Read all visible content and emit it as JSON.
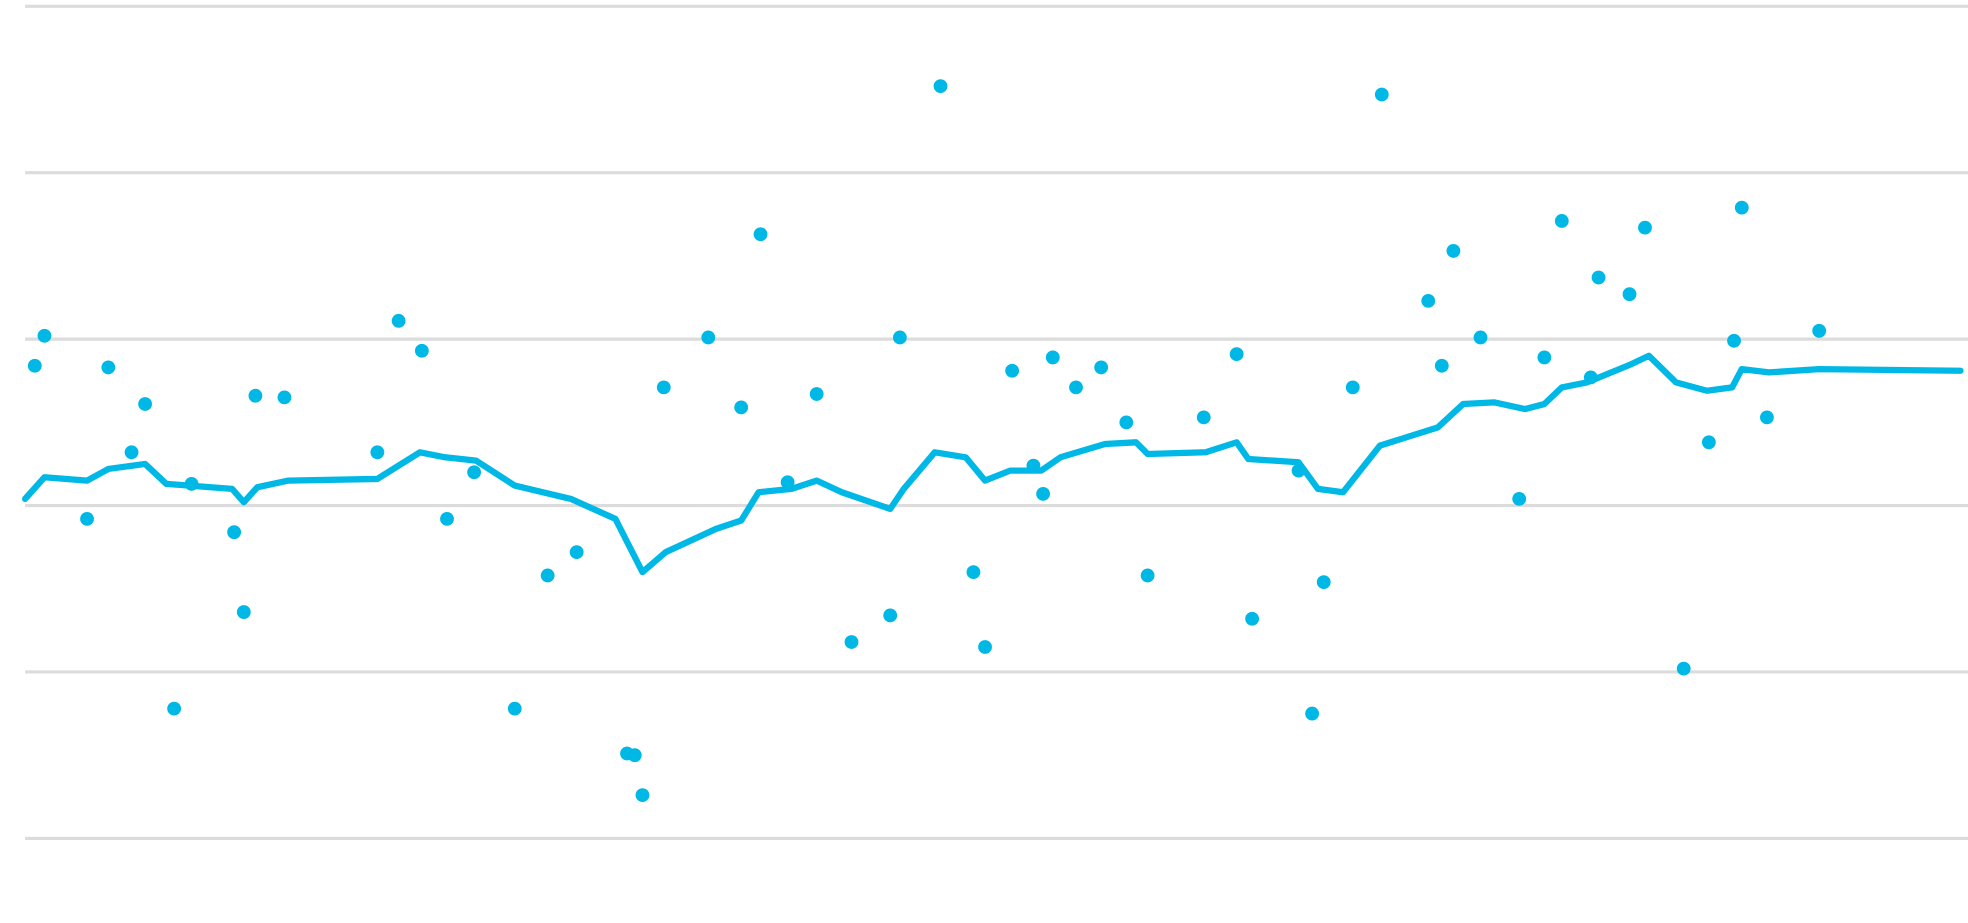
{
  "chart_data": {
    "type": "scatter",
    "color": "#00b8e6",
    "grid": true,
    "xlim": [
      0,
      100
    ],
    "ylim": [
      0,
      5
    ],
    "yticks": [
      0,
      1,
      2,
      3,
      4,
      5
    ],
    "points": {
      "x": [
        0.5,
        1.0,
        3.2,
        4.3,
        5.5,
        6.2,
        7.7,
        8.6,
        10.8,
        11.3,
        11.9,
        13.4,
        18.2,
        19.3,
        20.5,
        21.8,
        23.2,
        25.3,
        27.0,
        28.5,
        31.1,
        31.5,
        31.9,
        33.0,
        35.3,
        37.0,
        38.0,
        39.4,
        40.9,
        42.7,
        44.7,
        45.2,
        47.3,
        49.0,
        49.6,
        51.0,
        52.1,
        52.6,
        53.1,
        54.3,
        55.6,
        56.9,
        58.0,
        60.9,
        62.6,
        63.4,
        65.8,
        66.5,
        67.1,
        68.6,
        70.1,
        72.5,
        73.2,
        73.8,
        75.2,
        77.2,
        78.5,
        79.4,
        80.9,
        81.3,
        82.9,
        83.7,
        85.7,
        87.0,
        88.3,
        88.7,
        90.0,
        92.7
      ],
      "y": [
        2.84,
        3.02,
        1.92,
        2.83,
        2.32,
        2.61,
        0.78,
        2.13,
        1.84,
        1.36,
        2.66,
        2.65,
        2.32,
        3.11,
        2.93,
        1.92,
        2.2,
        0.78,
        1.58,
        1.72,
        0.51,
        0.5,
        0.26,
        2.71,
        3.01,
        2.59,
        3.63,
        2.14,
        2.67,
        1.18,
        1.34,
        3.01,
        4.52,
        1.6,
        1.15,
        2.81,
        2.24,
        2.07,
        2.89,
        2.71,
        2.83,
        2.5,
        1.58,
        2.53,
        2.91,
        1.32,
        2.21,
        0.75,
        1.54,
        2.71,
        4.47,
        3.23,
        2.84,
        3.53,
        3.01,
        2.04,
        2.89,
        3.71,
        2.77,
        3.37,
        3.27,
        3.67,
        1.02,
        2.38,
        2.99,
        3.79,
        2.53,
        3.05
      ]
    },
    "trend": {
      "x": [
        0.0,
        1.0,
        3.2,
        4.3,
        6.2,
        7.3,
        10.7,
        11.3,
        12.0,
        13.6,
        18.2,
        20.4,
        21.7,
        23.3,
        25.3,
        28.2,
        30.5,
        31.9,
        33.1,
        35.7,
        37.0,
        37.9,
        39.6,
        40.9,
        42.2,
        44.7,
        45.4,
        47.0,
        48.6,
        49.6,
        50.9,
        52.5,
        53.5,
        55.8,
        57.4,
        58.0,
        61.0,
        62.6,
        63.2,
        65.8,
        66.8,
        68.1,
        70.0,
        73.0,
        74.3,
        75.9,
        77.5,
        78.5,
        79.4,
        80.7,
        83.0,
        83.9,
        85.3,
        86.9,
        88.2,
        88.7,
        90.1,
        92.7,
        100.0
      ],
      "y": [
        2.04,
        2.17,
        2.15,
        2.22,
        2.25,
        2.13,
        2.1,
        2.02,
        2.11,
        2.15,
        2.16,
        2.32,
        2.29,
        2.27,
        2.12,
        2.04,
        1.92,
        1.6,
        1.72,
        1.86,
        1.91,
        2.08,
        2.1,
        2.15,
        2.08,
        1.98,
        2.1,
        2.32,
        2.29,
        2.15,
        2.21,
        2.21,
        2.29,
        2.37,
        2.38,
        2.31,
        2.32,
        2.38,
        2.28,
        2.26,
        2.1,
        2.08,
        2.36,
        2.47,
        2.61,
        2.62,
        2.58,
        2.61,
        2.71,
        2.74,
        2.85,
        2.9,
        2.74,
        2.69,
        2.71,
        2.82,
        2.8,
        2.82,
        2.81
      ]
    }
  }
}
